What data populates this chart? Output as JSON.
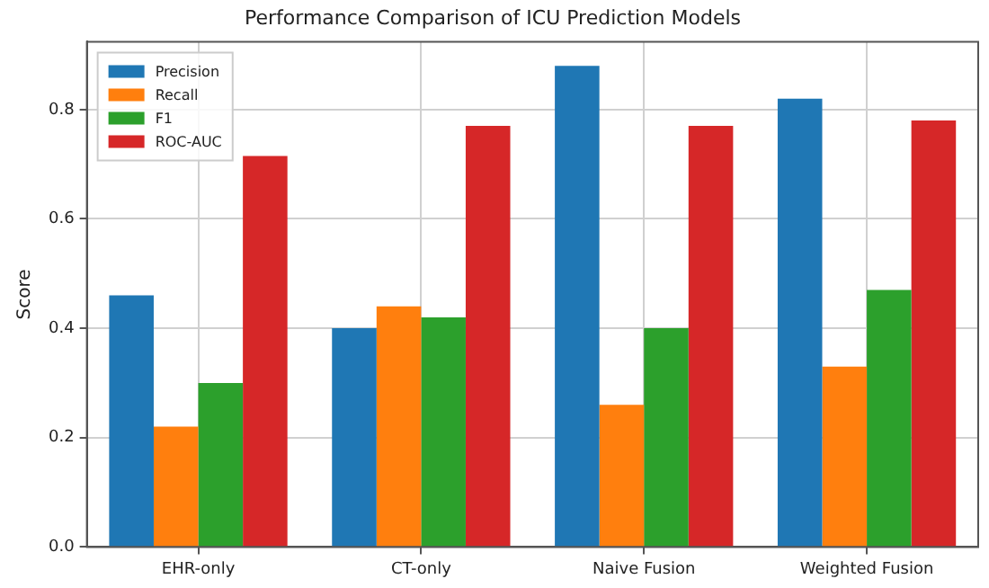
{
  "chart_data": {
    "type": "bar",
    "title": "Performance Comparison of ICU Prediction Models",
    "ylabel": "Score",
    "categories": [
      "EHR-only",
      "CT-only",
      "Naive Fusion",
      "Weighted Fusion"
    ],
    "series": [
      {
        "name": "Precision",
        "color": "#1f77b4",
        "values": [
          0.46,
          0.4,
          0.88,
          0.82
        ]
      },
      {
        "name": "Recall",
        "color": "#ff7f0e",
        "values": [
          0.22,
          0.44,
          0.26,
          0.33
        ]
      },
      {
        "name": "F1",
        "color": "#2ca02c",
        "values": [
          0.3,
          0.42,
          0.4,
          0.47
        ]
      },
      {
        "name": "ROC-AUC",
        "color": "#d62728",
        "values": [
          0.715,
          0.77,
          0.77,
          0.78
        ]
      }
    ],
    "ylim": [
      0,
      0.924
    ],
    "yticks": [
      {
        "value": 0,
        "label": "0.0"
      },
      {
        "value": 0.2,
        "label": "0.2"
      },
      {
        "value": 0.4,
        "label": "0.4"
      },
      {
        "value": 0.6,
        "label": "0.6"
      },
      {
        "value": 0.8,
        "label": "0.8"
      }
    ],
    "grid": true,
    "legend": "top left"
  }
}
